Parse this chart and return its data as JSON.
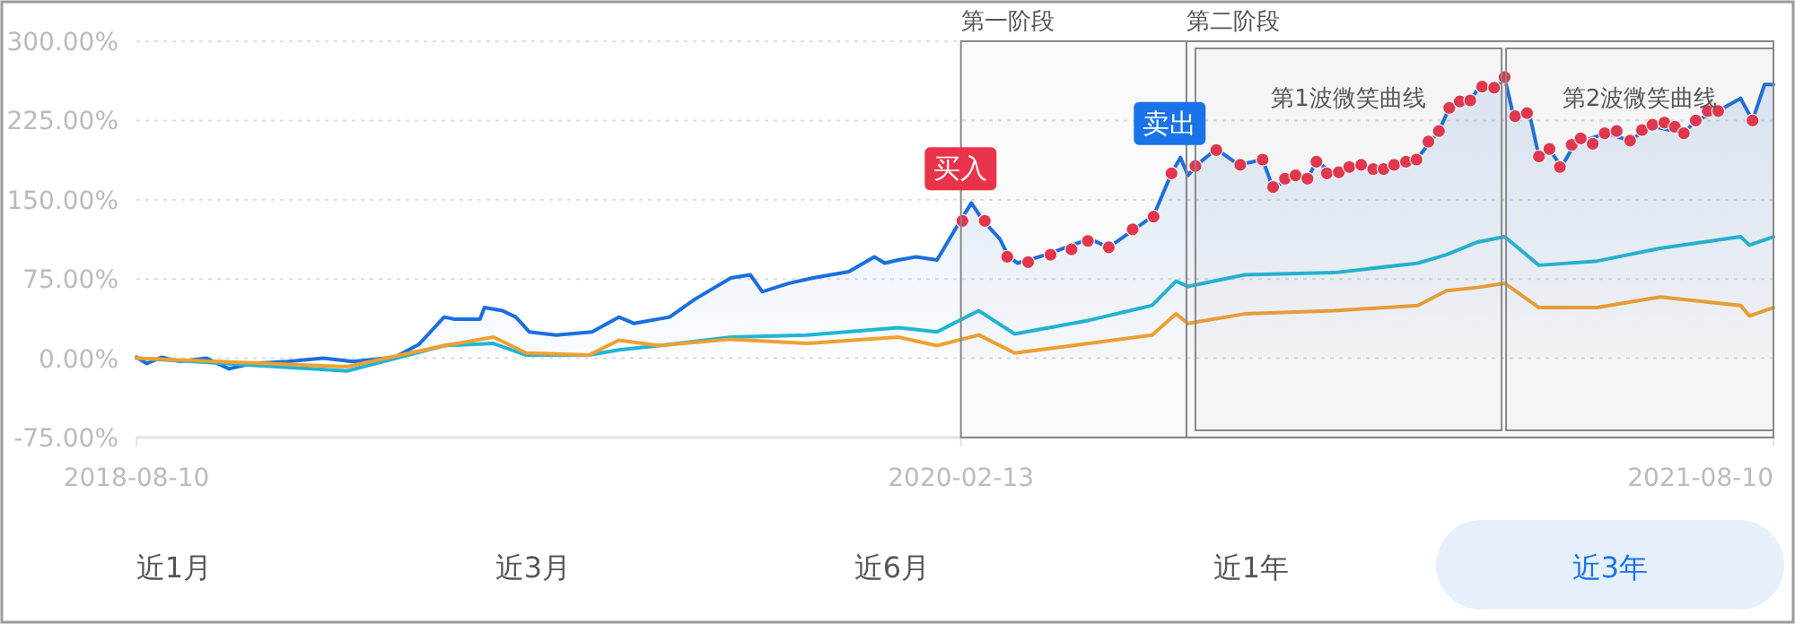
{
  "chart_data": {
    "type": "line",
    "xlim": [
      "2018-08-10",
      "2021-08-10"
    ],
    "xticks": [
      {
        "value": "2018-08-10",
        "label": "2018-08-10"
      },
      {
        "value": "2020-02-13",
        "label": "2020-02-13"
      },
      {
        "value": "2021-08-10",
        "label": "2021-08-10"
      }
    ],
    "ylim": [
      -75,
      300
    ],
    "yticks": [
      {
        "value": -75,
        "label": "-75.00%"
      },
      {
        "value": 0,
        "label": "0.00%"
      },
      {
        "value": 75,
        "label": "75.00%"
      },
      {
        "value": 150,
        "label": "150.00%"
      },
      {
        "value": 225,
        "label": "225.00%"
      },
      {
        "value": 300,
        "label": "300.00%"
      }
    ],
    "grid": "y",
    "line_style": "solid",
    "series": [
      {
        "type": "area",
        "color": "#1a6fdf",
        "x": [
          "2018-08-10",
          "2018-08-17",
          "2018-08-27",
          "2018-09-08",
          "2018-09-26",
          "2018-10-11",
          "2018-10-26",
          "2018-11-19",
          "2018-12-13",
          "2019-01-02",
          "2019-01-30",
          "2019-02-15",
          "2019-03-04",
          "2019-03-11",
          "2019-03-28",
          "2019-03-31",
          "2019-04-12",
          "2019-04-21",
          "2019-04-30",
          "2019-05-18",
          "2019-06-11",
          "2019-06-29",
          "2019-07-09",
          "2019-08-02",
          "2019-08-19",
          "2019-09-12",
          "2019-09-25",
          "2019-10-03",
          "2019-10-21",
          "2019-11-06",
          "2019-11-30",
          "2019-12-17",
          "2019-12-24",
          "2020-01-02",
          "2020-01-14",
          "2020-01-28",
          "2020-02-10",
          "2020-02-20",
          "2020-02-28",
          "2020-03-10",
          "2020-03-16",
          "2020-03-22",
          "2020-04-10",
          "2020-05-09",
          "2020-05-22",
          "2020-06-08",
          "2020-06-21",
          "2020-07-03",
          "2020-07-09",
          "2020-07-14",
          "2020-07-20",
          "2020-08-02",
          "2020-08-17",
          "2020-09-02",
          "2020-09-09",
          "2020-09-26",
          "2020-10-02",
          "2020-10-08",
          "2020-10-20",
          "2020-11-05",
          "2020-11-25",
          "2020-12-15",
          "2020-12-29",
          "2021-01-05",
          "2021-01-20",
          "2021-01-26",
          "2021-02-04",
          "2021-02-11",
          "2021-02-17",
          "2021-02-28",
          "2021-03-06",
          "2021-03-13",
          "2021-03-21",
          "2021-03-30",
          "2021-04-20",
          "2021-05-06",
          "2021-05-20",
          "2021-06-11",
          "2021-06-19",
          "2021-07-04",
          "2021-07-19",
          "2021-07-27",
          "2021-08-04",
          "2021-08-10"
        ],
        "values": [
          1,
          -5,
          1,
          -3,
          0,
          -10,
          -5,
          -3,
          0,
          -3,
          1,
          13,
          39,
          37,
          37,
          48,
          45,
          39,
          25,
          22,
          25,
          39,
          33,
          39,
          56,
          76,
          79,
          63,
          71,
          76,
          82,
          96,
          90,
          93,
          96,
          93,
          124,
          147,
          130,
          113,
          96,
          90,
          98,
          113,
          105,
          122,
          135,
          175,
          190,
          173,
          183,
          198,
          183,
          188,
          161,
          175,
          170,
          186,
          175,
          183,
          180,
          190,
          215,
          237,
          246,
          259,
          254,
          266,
          229,
          229,
          191,
          198,
          181,
          203,
          213,
          206,
          220,
          213,
          225,
          234,
          246,
          225,
          259,
          259
        ]
      },
      {
        "type": "line",
        "color": "#1fb5d6",
        "x": [
          "2018-08-10",
          "2018-12-29",
          "2019-03-04",
          "2019-04-06",
          "2019-04-28",
          "2019-06-09",
          "2019-06-29",
          "2019-07-26",
          "2019-09-12",
          "2019-11-02",
          "2020-01-02",
          "2020-01-28",
          "2020-02-25",
          "2020-03-20",
          "2020-05-09",
          "2020-06-20",
          "2020-07-06",
          "2020-07-14",
          "2020-08-21",
          "2020-10-20",
          "2020-12-15",
          "2021-01-03",
          "2021-01-24",
          "2021-02-11",
          "2021-03-06",
          "2021-04-14",
          "2021-05-26",
          "2021-07-19",
          "2021-07-25",
          "2021-08-10"
        ],
        "values": [
          0,
          -12,
          12,
          14,
          3,
          3,
          8,
          12,
          20,
          22,
          29,
          25,
          45,
          23,
          36,
          50,
          73,
          68,
          79,
          81,
          90,
          98,
          110,
          115,
          88,
          92,
          104,
          115,
          107,
          115
        ]
      },
      {
        "type": "line",
        "color": "#f0a030",
        "x": [
          "2018-08-10",
          "2018-12-29",
          "2019-03-04",
          "2019-04-06",
          "2019-04-28",
          "2019-06-09",
          "2019-06-29",
          "2019-07-26",
          "2019-09-12",
          "2019-11-02",
          "2020-01-02",
          "2020-01-28",
          "2020-02-25",
          "2020-03-20",
          "2020-05-09",
          "2020-06-20",
          "2020-07-06",
          "2020-07-14",
          "2020-08-21",
          "2020-10-20",
          "2020-12-15",
          "2021-01-03",
          "2021-01-24",
          "2021-02-11",
          "2021-03-06",
          "2021-04-14",
          "2021-05-26",
          "2021-07-19",
          "2021-07-25",
          "2021-08-10"
        ],
        "values": [
          0,
          -8,
          12,
          20,
          5,
          3,
          17,
          12,
          18,
          14,
          20,
          12,
          22,
          5,
          14,
          22,
          42,
          33,
          42,
          45,
          50,
          64,
          67,
          71,
          48,
          48,
          58,
          50,
          40,
          48
        ]
      },
      {
        "type": "scatter",
        "color": "#e8334a",
        "marker": "circle",
        "x": [
          "2020-02-14",
          "2020-02-29",
          "2020-03-15",
          "2020-03-29",
          "2020-04-13",
          "2020-04-27",
          "2020-05-08",
          "2020-05-22",
          "2020-06-07",
          "2020-06-21",
          "2020-07-03",
          "2020-07-19",
          "2020-08-02",
          "2020-08-18",
          "2020-09-02",
          "2020-09-09",
          "2020-09-17",
          "2020-09-24",
          "2020-10-02",
          "2020-10-08",
          "2020-10-15",
          "2020-10-23",
          "2020-10-30",
          "2020-11-07",
          "2020-11-15",
          "2020-11-22",
          "2020-11-29",
          "2020-12-07",
          "2020-12-14",
          "2020-12-22",
          "2020-12-29",
          "2021-01-05",
          "2021-01-12",
          "2021-01-19",
          "2021-01-27",
          "2021-02-04",
          "2021-02-11",
          "2021-02-18",
          "2021-02-26",
          "2021-03-06",
          "2021-03-13",
          "2021-03-20",
          "2021-03-28",
          "2021-04-03",
          "2021-04-11",
          "2021-04-19",
          "2021-04-27",
          "2021-05-06",
          "2021-05-14",
          "2021-05-21",
          "2021-05-29",
          "2021-06-05",
          "2021-06-11",
          "2021-06-19",
          "2021-06-27",
          "2021-07-04",
          "2021-07-27"
        ],
        "values": [
          130,
          130,
          96,
          91,
          98,
          103,
          111,
          105,
          122,
          134,
          175,
          182,
          197,
          183,
          188,
          162,
          170,
          173,
          170,
          186,
          175,
          176,
          181,
          183,
          179,
          179,
          183,
          186,
          188,
          205,
          215,
          237,
          243,
          244,
          257,
          256,
          266,
          229,
          232,
          191,
          198,
          181,
          202,
          208,
          203,
          213,
          215,
          206,
          216,
          221,
          223,
          219,
          213,
          225,
          234,
          234,
          225
        ]
      }
    ],
    "bands": [
      {
        "axis": "x",
        "from": "2020-02-13",
        "to": "2020-07-13",
        "label": "第一阶段",
        "color": "#888888"
      },
      {
        "axis": "x",
        "from": "2020-07-13",
        "to": "2021-08-10",
        "label": "第二阶段",
        "color": "#888888"
      },
      {
        "axis": "x",
        "from": "2020-07-19",
        "to": "2021-02-09",
        "label": "第1波微笑曲线",
        "color": "#888888"
      },
      {
        "axis": "x",
        "from": "2021-02-12",
        "to": "2021-08-10",
        "label": "第2波微笑曲线",
        "color": "#888888"
      }
    ],
    "annotations": [
      {
        "text": "买入",
        "x": "2020-02-20",
        "y": 147
      },
      {
        "text": "卖出",
        "x": "2020-07-09",
        "y": 190
      },
      "近1月",
      "近3月",
      "近6月",
      "近1年",
      "近3年"
    ]
  }
}
